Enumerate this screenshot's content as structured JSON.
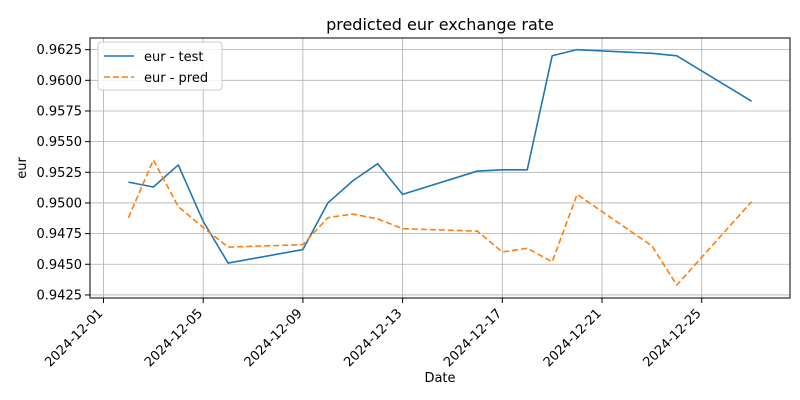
{
  "chart_data": {
    "type": "line",
    "title": "predicted eur exchange rate",
    "xlabel": "Date",
    "ylabel": "eur",
    "grid": true,
    "legend_position": "top-left",
    "xlim": [
      "2024-11-30T11:00",
      "2024-12-28T13:00"
    ],
    "ylim": [
      0.94225,
      0.96345
    ],
    "xticks": [
      "2024-12-01",
      "2024-12-05",
      "2024-12-09",
      "2024-12-13",
      "2024-12-17",
      "2024-12-21",
      "2024-12-25"
    ],
    "yticks": [
      0.9425,
      0.945,
      0.9475,
      0.95,
      0.9525,
      0.955,
      0.9575,
      0.96,
      0.9625
    ],
    "ytick_labels": [
      "0.9425",
      "0.9450",
      "0.9475",
      "0.9500",
      "0.9525",
      "0.9550",
      "0.9575",
      "0.9600",
      "0.9625"
    ],
    "x": [
      "2024-12-02",
      "2024-12-03",
      "2024-12-04",
      "2024-12-05",
      "2024-12-06",
      "2024-12-09",
      "2024-12-10",
      "2024-12-11",
      "2024-12-12",
      "2024-12-13",
      "2024-12-16",
      "2024-12-17",
      "2024-12-18",
      "2024-12-19",
      "2024-12-20",
      "2024-12-23",
      "2024-12-24",
      "2024-12-27"
    ],
    "series": [
      {
        "name": "eur - test",
        "color": "#1f77b4",
        "style": "solid",
        "values": [
          0.9517,
          0.9513,
          0.9531,
          0.9485,
          0.9451,
          0.9462,
          0.95,
          0.9518,
          0.9532,
          0.9507,
          0.9526,
          0.9527,
          0.9527,
          0.962,
          0.9625,
          0.9622,
          0.962,
          0.9583
        ]
      },
      {
        "name": "eur - pred",
        "color": "#ff7f0e",
        "style": "dashed",
        "values": [
          0.9488,
          0.9535,
          0.9497,
          0.948,
          0.9464,
          0.9466,
          0.9488,
          0.9491,
          0.9487,
          0.9479,
          0.9477,
          0.946,
          0.9463,
          0.9452,
          0.9507,
          0.9465,
          0.9433,
          0.9501
        ]
      }
    ]
  }
}
